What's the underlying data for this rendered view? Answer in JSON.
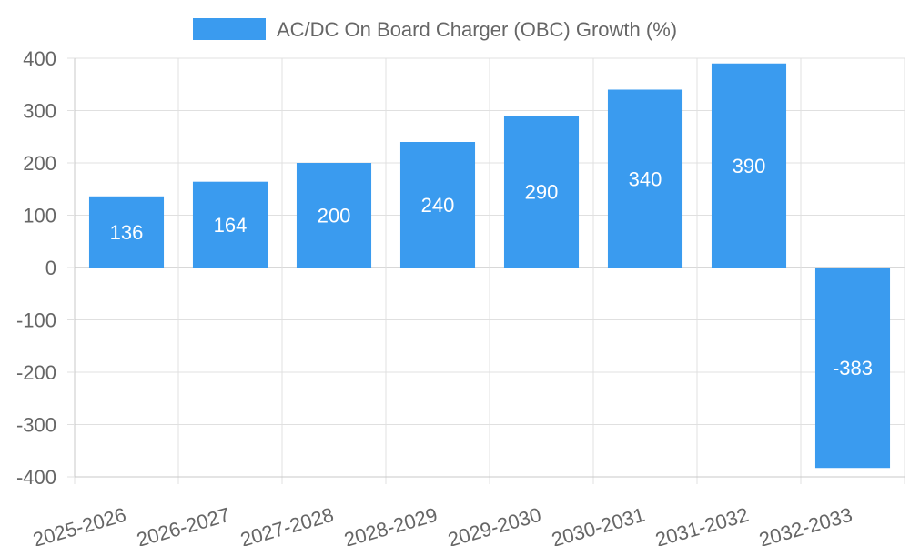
{
  "chart_data": {
    "type": "bar",
    "categories": [
      "2025-2026",
      "2026-2027",
      "2027-2028",
      "2028-2029",
      "2029-2030",
      "2030-2031",
      "2031-2032",
      "2032-2033"
    ],
    "series": [
      {
        "name": "AC/DC On Board Charger (OBC) Growth (%)",
        "values": [
          136,
          164,
          200,
          240,
          290,
          340,
          390,
          -383
        ]
      }
    ],
    "data_labels": [
      "136",
      "164",
      "200",
      "240",
      "290",
      "340",
      "390",
      "-383"
    ],
    "y_ticks": [
      "400",
      "300",
      "200",
      "100",
      "0",
      "-100",
      "-200",
      "-300",
      "-400"
    ],
    "ylim": [
      -400,
      400
    ],
    "grid": true,
    "legend_position": "top",
    "colors": {
      "bar": "#3a9bef",
      "grid": "#e0e0e0",
      "axis": "#c8c8c8",
      "text": "#666666",
      "label": "#ffffff"
    }
  }
}
